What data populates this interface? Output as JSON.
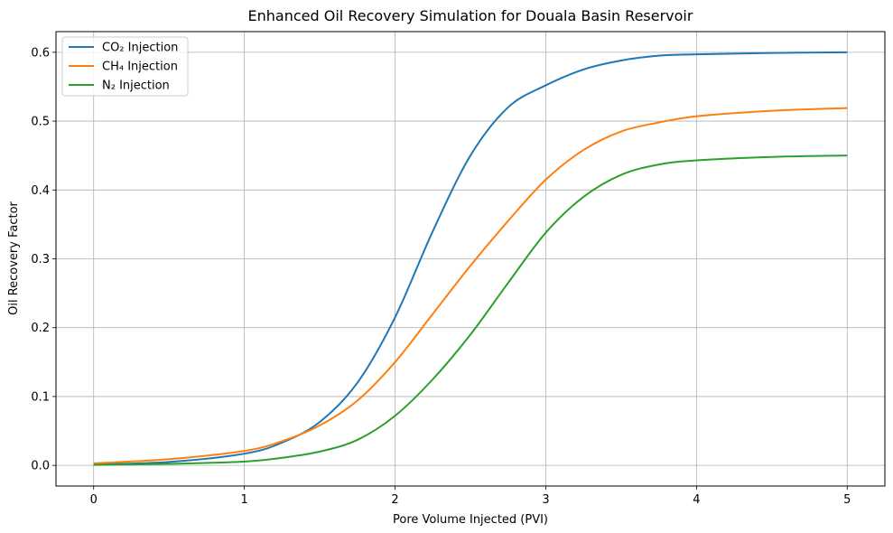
{
  "chart_data": {
    "type": "line",
    "title": "Enhanced Oil Recovery Simulation for Douala Basin Reservoir",
    "xlabel": "Pore Volume Injected (PVI)",
    "ylabel": "Oil Recovery Factor",
    "xlim": [
      -0.25,
      5.25
    ],
    "ylim": [
      -0.03,
      0.63
    ],
    "x_ticks": [
      0,
      1,
      2,
      3,
      4,
      5
    ],
    "y_ticks": [
      0.0,
      0.1,
      0.2,
      0.3,
      0.4,
      0.5,
      0.6
    ],
    "x_tick_labels": [
      "0",
      "1",
      "2",
      "3",
      "4",
      "5"
    ],
    "y_tick_labels": [
      "0.0",
      "0.1",
      "0.2",
      "0.3",
      "0.4",
      "0.5",
      "0.6"
    ],
    "grid": true,
    "legend_position": "upper-left",
    "x": [
      0,
      0.5,
      1.0,
      1.25,
      1.5,
      1.75,
      2.0,
      2.25,
      2.5,
      2.75,
      3.0,
      3.25,
      3.5,
      3.75,
      4.0,
      4.5,
      5.0
    ],
    "series": [
      {
        "name": "CO₂ Injection",
        "color": "#1f77b4",
        "values": [
          0.0015,
          0.005,
          0.017,
          0.033,
          0.063,
          0.12,
          0.215,
          0.34,
          0.45,
          0.52,
          0.552,
          0.575,
          0.588,
          0.595,
          0.597,
          0.599,
          0.6
        ]
      },
      {
        "name": "CH₄ Injection",
        "color": "#ff7f0e",
        "values": [
          0.003,
          0.009,
          0.021,
          0.035,
          0.058,
          0.094,
          0.15,
          0.22,
          0.29,
          0.355,
          0.415,
          0.458,
          0.485,
          0.498,
          0.507,
          0.515,
          0.519
        ]
      },
      {
        "name": "N₂ Injection",
        "color": "#2ca02c",
        "values": [
          0.0007,
          0.0022,
          0.0055,
          0.011,
          0.02,
          0.037,
          0.072,
          0.125,
          0.19,
          0.265,
          0.338,
          0.39,
          0.422,
          0.437,
          0.443,
          0.448,
          0.45
        ]
      }
    ]
  }
}
